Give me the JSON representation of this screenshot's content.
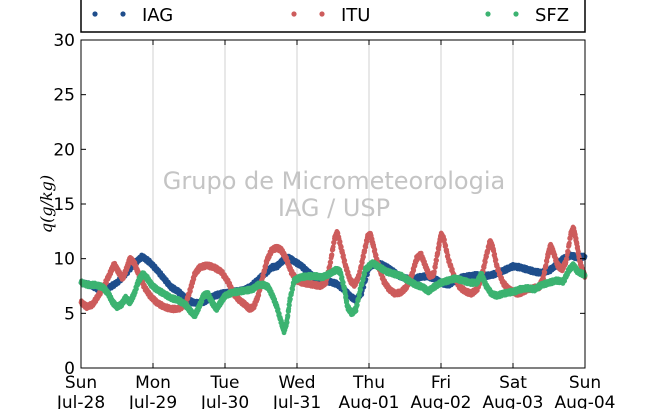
{
  "chart_data": {
    "type": "scatter",
    "ylabel": "q(g/kg)",
    "ylim": [
      0,
      30
    ],
    "yticks": [
      0,
      5,
      10,
      15,
      20,
      25,
      30
    ],
    "xlim": [
      0,
      7
    ],
    "xticks": [
      {
        "day": "Sun",
        "date": "Jul-28"
      },
      {
        "day": "Mon",
        "date": "Jul-29"
      },
      {
        "day": "Tue",
        "date": "Jul-30"
      },
      {
        "day": "Wed",
        "date": "Jul-31"
      },
      {
        "day": "Thu",
        "date": "Aug-01"
      },
      {
        "day": "Fri",
        "date": "Aug-02"
      },
      {
        "day": "Sat",
        "date": "Aug-03"
      },
      {
        "day": "Sun",
        "date": "Aug-04"
      }
    ],
    "grid": "vertical",
    "legend_position": "top",
    "watermark": [
      "Grupo de Micrometeorologia",
      "IAG / USP"
    ],
    "series": [
      {
        "name": "IAG",
        "color": "#1f4e8c",
        "points": [
          [
            0.0,
            7.8
          ],
          [
            0.12,
            7.6
          ],
          [
            0.25,
            7.2
          ],
          [
            0.38,
            7.3
          ],
          [
            0.5,
            7.8
          ],
          [
            0.62,
            8.6
          ],
          [
            0.75,
            9.6
          ],
          [
            0.85,
            10.2
          ],
          [
            0.95,
            9.7
          ],
          [
            1.05,
            9.0
          ],
          [
            1.15,
            8.2
          ],
          [
            1.25,
            7.4
          ],
          [
            1.35,
            7.0
          ],
          [
            1.45,
            6.4
          ],
          [
            1.55,
            6.0
          ],
          [
            1.65,
            5.9
          ],
          [
            1.75,
            6.2
          ],
          [
            1.85,
            6.6
          ],
          [
            1.95,
            6.8
          ],
          [
            2.05,
            6.9
          ],
          [
            2.15,
            7.0
          ],
          [
            2.25,
            7.1
          ],
          [
            2.35,
            7.4
          ],
          [
            2.45,
            8.0
          ],
          [
            2.55,
            8.6
          ],
          [
            2.65,
            9.2
          ],
          [
            2.72,
            9.3
          ],
          [
            2.8,
            9.8
          ],
          [
            2.88,
            10.1
          ],
          [
            2.95,
            9.8
          ],
          [
            3.05,
            9.4
          ],
          [
            3.15,
            8.8
          ],
          [
            3.25,
            8.2
          ],
          [
            3.35,
            8.0
          ],
          [
            3.45,
            7.9
          ],
          [
            3.55,
            7.7
          ],
          [
            3.65,
            7.2
          ],
          [
            3.75,
            6.5
          ],
          [
            3.82,
            6.2
          ],
          [
            3.9,
            6.9
          ],
          [
            4.0,
            9.2
          ],
          [
            4.1,
            9.6
          ],
          [
            4.2,
            9.4
          ],
          [
            4.3,
            9.0
          ],
          [
            4.4,
            8.5
          ],
          [
            4.5,
            8.2
          ],
          [
            4.6,
            8.1
          ],
          [
            4.7,
            8.3
          ],
          [
            4.8,
            8.4
          ],
          [
            4.9,
            8.2
          ],
          [
            5.0,
            7.8
          ],
          [
            5.1,
            7.6
          ],
          [
            5.2,
            8.0
          ],
          [
            5.3,
            8.3
          ],
          [
            5.4,
            8.4
          ],
          [
            5.5,
            8.5
          ],
          [
            5.6,
            8.4
          ],
          [
            5.7,
            8.5
          ],
          [
            5.8,
            8.7
          ],
          [
            5.9,
            9.0
          ],
          [
            6.0,
            9.3
          ],
          [
            6.1,
            9.2
          ],
          [
            6.2,
            9.0
          ],
          [
            6.3,
            8.8
          ],
          [
            6.4,
            8.7
          ],
          [
            6.5,
            8.9
          ],
          [
            6.6,
            9.4
          ],
          [
            6.7,
            10.0
          ],
          [
            6.8,
            10.3
          ],
          [
            6.9,
            10.1
          ],
          [
            7.0,
            10.2
          ]
        ]
      },
      {
        "name": "ITU",
        "color": "#cd5c5c",
        "points": [
          [
            0.0,
            6.0
          ],
          [
            0.08,
            5.6
          ],
          [
            0.16,
            5.8
          ],
          [
            0.24,
            6.6
          ],
          [
            0.32,
            7.5
          ],
          [
            0.4,
            8.6
          ],
          [
            0.46,
            9.5
          ],
          [
            0.52,
            8.8
          ],
          [
            0.58,
            8.2
          ],
          [
            0.64,
            9.2
          ],
          [
            0.68,
            10.0
          ],
          [
            0.74,
            9.6
          ],
          [
            0.8,
            8.6
          ],
          [
            0.88,
            7.4
          ],
          [
            0.96,
            6.6
          ],
          [
            1.05,
            6.0
          ],
          [
            1.15,
            5.6
          ],
          [
            1.25,
            5.4
          ],
          [
            1.35,
            5.4
          ],
          [
            1.45,
            5.8
          ],
          [
            1.52,
            7.2
          ],
          [
            1.58,
            8.6
          ],
          [
            1.65,
            9.2
          ],
          [
            1.75,
            9.4
          ],
          [
            1.85,
            9.2
          ],
          [
            1.95,
            8.8
          ],
          [
            2.05,
            7.8
          ],
          [
            2.12,
            6.8
          ],
          [
            2.2,
            6.2
          ],
          [
            2.28,
            5.8
          ],
          [
            2.34,
            5.4
          ],
          [
            2.4,
            5.6
          ],
          [
            2.46,
            6.6
          ],
          [
            2.52,
            8.2
          ],
          [
            2.58,
            9.8
          ],
          [
            2.65,
            10.8
          ],
          [
            2.72,
            11.0
          ],
          [
            2.78,
            10.8
          ],
          [
            2.85,
            10.0
          ],
          [
            2.92,
            8.8
          ],
          [
            3.0,
            8.0
          ],
          [
            3.08,
            7.8
          ],
          [
            3.16,
            7.7
          ],
          [
            3.24,
            7.6
          ],
          [
            3.32,
            7.5
          ],
          [
            3.4,
            7.8
          ],
          [
            3.46,
            9.5
          ],
          [
            3.52,
            11.8
          ],
          [
            3.56,
            12.4
          ],
          [
            3.62,
            10.8
          ],
          [
            3.68,
            9.2
          ],
          [
            3.74,
            8.0
          ],
          [
            3.8,
            7.6
          ],
          [
            3.86,
            8.4
          ],
          [
            3.92,
            10.2
          ],
          [
            3.98,
            12.0
          ],
          [
            4.02,
            12.2
          ],
          [
            4.06,
            11.2
          ],
          [
            4.12,
            9.6
          ],
          [
            4.2,
            8.0
          ],
          [
            4.28,
            7.2
          ],
          [
            4.36,
            6.8
          ],
          [
            4.44,
            6.9
          ],
          [
            4.52,
            7.4
          ],
          [
            4.6,
            8.6
          ],
          [
            4.66,
            10.0
          ],
          [
            4.72,
            10.4
          ],
          [
            4.78,
            9.4
          ],
          [
            4.84,
            8.4
          ],
          [
            4.9,
            8.6
          ],
          [
            4.96,
            10.8
          ],
          [
            5.0,
            12.2
          ],
          [
            5.04,
            11.8
          ],
          [
            5.1,
            10.0
          ],
          [
            5.18,
            8.4
          ],
          [
            5.26,
            7.4
          ],
          [
            5.34,
            7.0
          ],
          [
            5.42,
            6.8
          ],
          [
            5.5,
            7.2
          ],
          [
            5.56,
            8.2
          ],
          [
            5.62,
            10.0
          ],
          [
            5.68,
            11.6
          ],
          [
            5.72,
            11.0
          ],
          [
            5.78,
            9.2
          ],
          [
            5.86,
            7.8
          ],
          [
            5.94,
            7.2
          ],
          [
            6.0,
            7.0
          ],
          [
            6.06,
            6.8
          ],
          [
            6.12,
            6.9
          ],
          [
            6.2,
            7.2
          ],
          [
            6.28,
            7.3
          ],
          [
            6.36,
            7.4
          ],
          [
            6.42,
            8.2
          ],
          [
            6.48,
            10.2
          ],
          [
            6.52,
            11.2
          ],
          [
            6.56,
            10.6
          ],
          [
            6.62,
            9.4
          ],
          [
            6.68,
            9.0
          ],
          [
            6.74,
            9.8
          ],
          [
            6.8,
            12.2
          ],
          [
            6.84,
            12.8
          ],
          [
            6.88,
            11.6
          ],
          [
            6.92,
            10.0
          ],
          [
            6.96,
            9.0
          ],
          [
            7.0,
            8.4
          ]
        ]
      },
      {
        "name": "SFZ",
        "color": "#3cb371",
        "points": [
          [
            0.0,
            7.8
          ],
          [
            0.1,
            7.6
          ],
          [
            0.2,
            7.6
          ],
          [
            0.3,
            7.4
          ],
          [
            0.38,
            6.8
          ],
          [
            0.44,
            6.0
          ],
          [
            0.5,
            5.6
          ],
          [
            0.56,
            5.8
          ],
          [
            0.62,
            6.4
          ],
          [
            0.68,
            6.0
          ],
          [
            0.74,
            6.8
          ],
          [
            0.8,
            8.0
          ],
          [
            0.86,
            8.6
          ],
          [
            0.92,
            8.2
          ],
          [
            0.98,
            7.6
          ],
          [
            1.05,
            7.2
          ],
          [
            1.15,
            6.8
          ],
          [
            1.25,
            6.4
          ],
          [
            1.35,
            6.2
          ],
          [
            1.45,
            5.8
          ],
          [
            1.52,
            5.2
          ],
          [
            1.58,
            4.8
          ],
          [
            1.64,
            5.6
          ],
          [
            1.7,
            6.6
          ],
          [
            1.76,
            6.8
          ],
          [
            1.82,
            6.0
          ],
          [
            1.88,
            5.4
          ],
          [
            1.94,
            6.0
          ],
          [
            2.0,
            6.6
          ],
          [
            2.1,
            6.9
          ],
          [
            2.2,
            7.0
          ],
          [
            2.3,
            7.1
          ],
          [
            2.38,
            7.2
          ],
          [
            2.46,
            7.6
          ],
          [
            2.54,
            7.6
          ],
          [
            2.6,
            7.4
          ],
          [
            2.66,
            6.6
          ],
          [
            2.72,
            5.6
          ],
          [
            2.78,
            4.2
          ],
          [
            2.82,
            3.4
          ],
          [
            2.86,
            4.2
          ],
          [
            2.9,
            6.2
          ],
          [
            2.96,
            8.0
          ],
          [
            3.05,
            8.3
          ],
          [
            3.15,
            8.4
          ],
          [
            3.25,
            8.4
          ],
          [
            3.35,
            8.3
          ],
          [
            3.45,
            8.6
          ],
          [
            3.55,
            9.0
          ],
          [
            3.6,
            8.8
          ],
          [
            3.66,
            7.2
          ],
          [
            3.7,
            5.6
          ],
          [
            3.76,
            5.0
          ],
          [
            3.82,
            5.4
          ],
          [
            3.88,
            7.2
          ],
          [
            3.95,
            9.0
          ],
          [
            4.05,
            9.6
          ],
          [
            4.15,
            9.2
          ],
          [
            4.25,
            8.8
          ],
          [
            4.35,
            8.6
          ],
          [
            4.45,
            8.4
          ],
          [
            4.55,
            8.0
          ],
          [
            4.65,
            7.6
          ],
          [
            4.75,
            7.4
          ],
          [
            4.82,
            7.0
          ],
          [
            4.9,
            7.4
          ],
          [
            5.0,
            7.8
          ],
          [
            5.1,
            8.0
          ],
          [
            5.2,
            8.2
          ],
          [
            5.3,
            8.0
          ],
          [
            5.4,
            7.8
          ],
          [
            5.5,
            7.8
          ],
          [
            5.56,
            8.6
          ],
          [
            5.62,
            7.6
          ],
          [
            5.7,
            6.8
          ],
          [
            5.78,
            6.6
          ],
          [
            5.86,
            6.8
          ],
          [
            5.94,
            6.9
          ],
          [
            6.02,
            7.0
          ],
          [
            6.1,
            7.2
          ],
          [
            6.2,
            7.3
          ],
          [
            6.3,
            7.2
          ],
          [
            6.4,
            7.6
          ],
          [
            6.5,
            7.8
          ],
          [
            6.6,
            8.0
          ],
          [
            6.7,
            7.9
          ],
          [
            6.78,
            9.0
          ],
          [
            6.84,
            9.4
          ],
          [
            6.9,
            8.8
          ],
          [
            7.0,
            8.5
          ]
        ]
      }
    ]
  }
}
